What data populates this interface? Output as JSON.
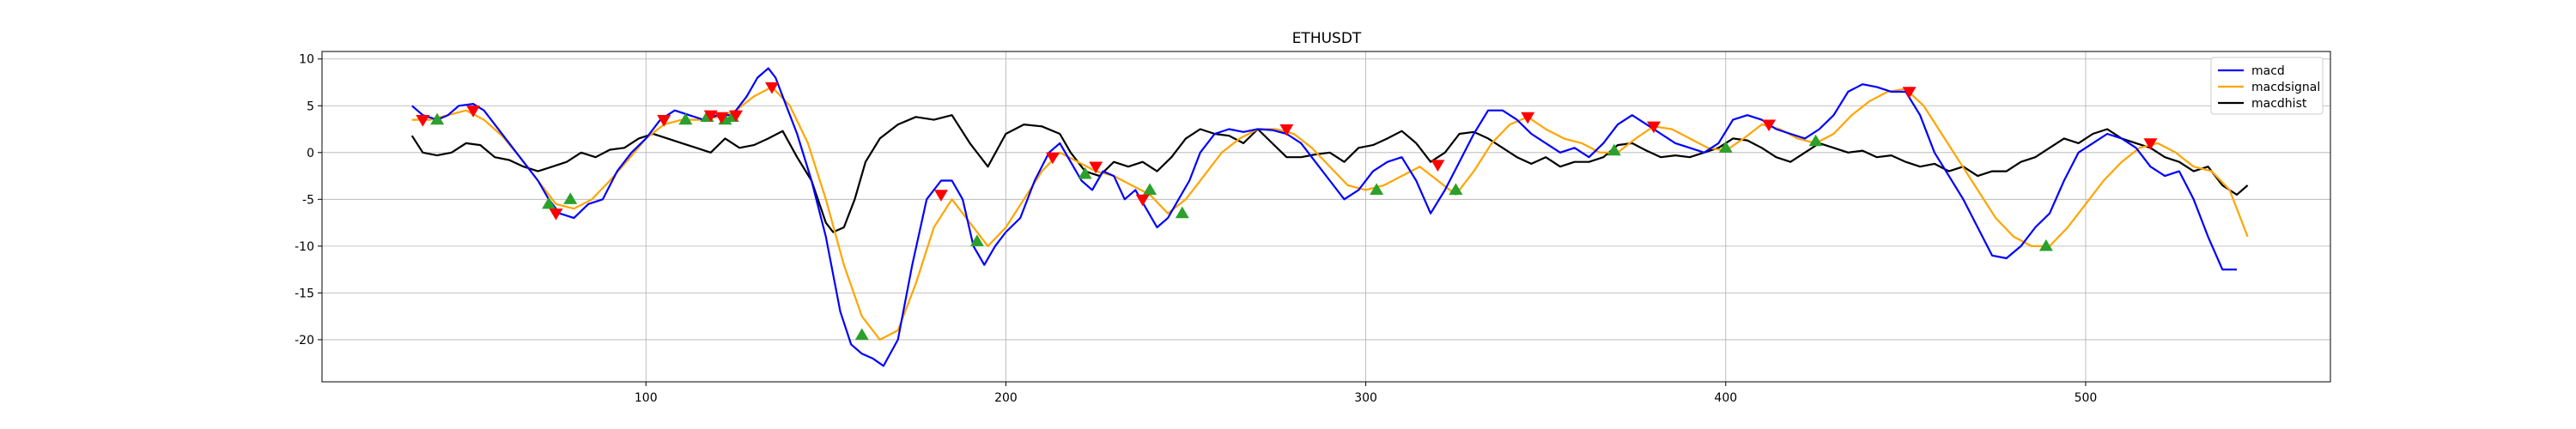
{
  "chart_data": {
    "type": "line",
    "title": "ETHUSDT",
    "xlabel": "",
    "ylabel": "",
    "xlim": [
      10,
      568
    ],
    "ylim": [
      -24.5,
      10.8
    ],
    "xticks": [
      100,
      200,
      300,
      400,
      500
    ],
    "yticks": [
      10,
      5,
      0,
      -5,
      -10,
      -15,
      -20
    ],
    "grid": true,
    "legend": "top-right",
    "colors": {
      "macd": "#0000ff",
      "macdsignal": "#ffa500",
      "macdhist": "#000000",
      "buy": "#2ca02c",
      "sell": "#ff0000"
    },
    "series": [
      {
        "name": "macd",
        "x": [
          35,
          38,
          42,
          45,
          48,
          52,
          55,
          58,
          62,
          66,
          70,
          73,
          76,
          80,
          84,
          88,
          92,
          96,
          100,
          104,
          108,
          112,
          116,
          120,
          124,
          128,
          131,
          134,
          136,
          139,
          142,
          146,
          150,
          154,
          157,
          160,
          163,
          166,
          170,
          174,
          178,
          182,
          185,
          188,
          191,
          194,
          197,
          200,
          204,
          208,
          212,
          215,
          218,
          221,
          224,
          227,
          230,
          233,
          236,
          239,
          242,
          245,
          248,
          251,
          254,
          258,
          262,
          266,
          270,
          274,
          278,
          282,
          286,
          290,
          294,
          298,
          302,
          306,
          310,
          314,
          318,
          322,
          326,
          330,
          334,
          338,
          342,
          346,
          350,
          354,
          358,
          362,
          366,
          370,
          374,
          378,
          382,
          386,
          390,
          394,
          398,
          402,
          406,
          410,
          414,
          418,
          422,
          426,
          430,
          434,
          438,
          442,
          446,
          450,
          454,
          458,
          462,
          466,
          470,
          474,
          478,
          482,
          486,
          490,
          494,
          498,
          502,
          506,
          510,
          514,
          518,
          522,
          526,
          530,
          534,
          538,
          542
        ],
        "y": [
          5.0,
          4.0,
          3.5,
          4.0,
          5.0,
          5.2,
          4.5,
          3.0,
          1.0,
          -1.0,
          -3.0,
          -5.0,
          -6.5,
          -7.0,
          -5.5,
          -5.0,
          -2.0,
          0.0,
          1.5,
          3.5,
          4.5,
          4.0,
          3.5,
          4.0,
          4.0,
          6.0,
          8.0,
          9.0,
          8.0,
          5.0,
          2.0,
          -3.0,
          -9.0,
          -17.0,
          -20.5,
          -21.5,
          -22.0,
          -22.8,
          -20.0,
          -12.0,
          -5.0,
          -3.0,
          -3.0,
          -5.0,
          -10.0,
          -12.0,
          -10.0,
          -8.5,
          -7.0,
          -3.0,
          0.0,
          1.0,
          -1.0,
          -3.0,
          -4.0,
          -2.0,
          -2.5,
          -5.0,
          -4.0,
          -6.0,
          -8.0,
          -7.0,
          -5.0,
          -3.0,
          0.0,
          2.0,
          2.5,
          2.2,
          2.5,
          2.4,
          2.0,
          1.0,
          -1.0,
          -3.0,
          -5.0,
          -4.0,
          -2.0,
          -1.0,
          -0.5,
          -3.0,
          -6.5,
          -4.0,
          -1.0,
          2.0,
          4.5,
          4.5,
          3.5,
          2.0,
          1.0,
          0.0,
          0.5,
          -0.5,
          1.0,
          3.0,
          4.0,
          3.0,
          2.0,
          1.0,
          0.5,
          0.0,
          1.0,
          3.5,
          4.0,
          3.5,
          2.5,
          2.0,
          1.5,
          2.5,
          4.0,
          6.5,
          7.3,
          7.0,
          6.5,
          6.5,
          4.0,
          0.0,
          -2.5,
          -5.0,
          -8.0,
          -11.0,
          -11.3,
          -10.0,
          -8.0,
          -6.5,
          -3.0,
          0.0,
          1.0,
          2.0,
          1.5,
          0.5,
          -1.5,
          -2.5,
          -2.0,
          -5.0,
          -9.0,
          -12.5,
          -12.5
        ]
      },
      {
        "name": "macdsignal",
        "x": [
          35,
          40,
          45,
          50,
          55,
          60,
          65,
          70,
          75,
          80,
          85,
          90,
          95,
          100,
          105,
          110,
          115,
          120,
          125,
          130,
          135,
          140,
          145,
          150,
          155,
          160,
          165,
          170,
          175,
          180,
          185,
          190,
          195,
          200,
          205,
          210,
          215,
          220,
          225,
          230,
          235,
          240,
          245,
          250,
          255,
          260,
          265,
          270,
          275,
          280,
          285,
          290,
          295,
          300,
          305,
          310,
          315,
          320,
          325,
          330,
          335,
          340,
          345,
          350,
          355,
          360,
          365,
          370,
          375,
          380,
          385,
          390,
          395,
          400,
          405,
          410,
          415,
          420,
          425,
          430,
          435,
          440,
          445,
          450,
          455,
          460,
          465,
          470,
          475,
          480,
          485,
          490,
          495,
          500,
          505,
          510,
          515,
          520,
          525,
          530,
          535,
          540,
          545
        ],
        "y": [
          3.5,
          3.5,
          4.0,
          4.5,
          3.5,
          1.8,
          -0.5,
          -3.0,
          -5.5,
          -6.0,
          -5.0,
          -3.0,
          -0.8,
          1.5,
          3.0,
          3.5,
          3.5,
          3.8,
          4.5,
          6.0,
          7.0,
          5.0,
          1.0,
          -5.0,
          -12.0,
          -17.5,
          -20.0,
          -19.0,
          -14.0,
          -8.0,
          -5.0,
          -7.5,
          -10.0,
          -8.0,
          -5.0,
          -2.0,
          0.0,
          -1.0,
          -2.0,
          -2.5,
          -3.5,
          -4.5,
          -6.5,
          -5.0,
          -2.5,
          0.0,
          1.5,
          2.5,
          2.5,
          2.0,
          0.5,
          -1.5,
          -3.5,
          -4.0,
          -3.5,
          -2.5,
          -1.5,
          -3.0,
          -4.5,
          -2.0,
          1.0,
          3.0,
          3.8,
          2.5,
          1.5,
          1.0,
          0.0,
          0.0,
          1.5,
          2.8,
          2.5,
          1.5,
          0.5,
          0.2,
          1.5,
          3.0,
          2.5,
          1.5,
          1.0,
          2.0,
          4.0,
          5.5,
          6.5,
          6.8,
          5.0,
          2.0,
          -1.0,
          -4.0,
          -7.0,
          -9.0,
          -10.0,
          -10.0,
          -8.0,
          -5.5,
          -3.0,
          -1.0,
          0.5,
          1.0,
          0.0,
          -1.5,
          -2.0,
          -4.0,
          -9.0
        ]
      },
      {
        "name": "macdhist",
        "x": [
          35,
          38,
          42,
          46,
          50,
          54,
          58,
          62,
          66,
          70,
          74,
          78,
          82,
          86,
          90,
          94,
          98,
          102,
          106,
          110,
          114,
          118,
          122,
          126,
          130,
          134,
          138,
          142,
          146,
          150,
          152,
          155,
          158,
          161,
          165,
          170,
          175,
          180,
          185,
          190,
          195,
          200,
          205,
          210,
          215,
          218,
          222,
          226,
          230,
          234,
          238,
          242,
          246,
          250,
          254,
          258,
          262,
          266,
          270,
          274,
          278,
          282,
          286,
          290,
          294,
          298,
          302,
          306,
          310,
          314,
          318,
          322,
          326,
          330,
          334,
          338,
          342,
          346,
          350,
          354,
          358,
          362,
          366,
          370,
          374,
          378,
          382,
          386,
          390,
          394,
          398,
          402,
          406,
          410,
          414,
          418,
          422,
          426,
          430,
          434,
          438,
          442,
          446,
          450,
          454,
          458,
          462,
          466,
          470,
          474,
          478,
          482,
          486,
          490,
          494,
          498,
          502,
          506,
          510,
          514,
          518,
          522,
          526,
          530,
          534,
          538,
          542,
          545
        ],
        "y": [
          1.8,
          0.0,
          -0.3,
          0.0,
          1.0,
          0.8,
          -0.5,
          -0.8,
          -1.5,
          -2.0,
          -1.5,
          -1.0,
          0.0,
          -0.5,
          0.3,
          0.5,
          1.5,
          2.0,
          1.5,
          1.0,
          0.5,
          0.0,
          1.5,
          0.5,
          0.8,
          1.5,
          2.3,
          -0.5,
          -3.0,
          -7.5,
          -8.5,
          -8.0,
          -5.0,
          -1.0,
          1.5,
          3.0,
          3.8,
          3.5,
          4.0,
          1.0,
          -1.5,
          2.0,
          3.0,
          2.8,
          2.0,
          0.0,
          -2.0,
          -2.5,
          -1.0,
          -1.5,
          -1.0,
          -2.0,
          -0.5,
          1.5,
          2.5,
          2.0,
          1.8,
          1.0,
          2.5,
          1.0,
          -0.5,
          -0.5,
          -0.2,
          0.0,
          -1.0,
          0.5,
          0.8,
          1.5,
          2.3,
          1.0,
          -1.0,
          0.0,
          2.0,
          2.2,
          1.5,
          0.5,
          -0.5,
          -1.2,
          -0.5,
          -1.5,
          -1.0,
          -1.0,
          -0.5,
          0.8,
          1.0,
          0.2,
          -0.5,
          -0.3,
          -0.5,
          0.0,
          0.5,
          1.5,
          1.3,
          0.5,
          -0.5,
          -1.0,
          0.0,
          1.0,
          0.5,
          0.0,
          0.2,
          -0.5,
          -0.3,
          -1.0,
          -1.5,
          -1.2,
          -2.0,
          -1.5,
          -2.5,
          -2.0,
          -2.0,
          -1.0,
          -0.5,
          0.5,
          1.5,
          1.0,
          2.0,
          2.5,
          1.5,
          1.0,
          0.5,
          -0.5,
          -1.0,
          -2.0,
          -1.5,
          -3.5,
          -4.5,
          -3.5
        ]
      }
    ],
    "buy_signals": {
      "x": [
        42,
        73,
        79,
        111,
        117,
        122,
        124,
        160,
        192,
        222,
        240,
        249,
        303,
        325,
        369,
        400,
        425,
        489
      ],
      "y": [
        3.5,
        -5.5,
        -5.0,
        3.5,
        3.8,
        3.5,
        3.8,
        -19.5,
        -9.5,
        -2.3,
        -4.0,
        -6.5,
        -4.0,
        -4.0,
        0.2,
        0.5,
        1.2,
        -10.0
      ]
    },
    "sell_signals": {
      "x": [
        38,
        52,
        75,
        105,
        118,
        121,
        125,
        135,
        182,
        213,
        225,
        238,
        278,
        320,
        345,
        380,
        412,
        451,
        518
      ],
      "y": [
        3.5,
        4.5,
        -6.5,
        3.5,
        4.0,
        3.8,
        4.0,
        7.0,
        -4.5,
        -0.5,
        -1.5,
        -5.0,
        2.5,
        -1.3,
        3.8,
        2.8,
        3.0,
        6.5,
        1.0
      ]
    }
  },
  "legend": {
    "items": [
      {
        "label": "macd",
        "color": "#0000ff"
      },
      {
        "label": "macdsignal",
        "color": "#ffa500"
      },
      {
        "label": "macdhist",
        "color": "#000000"
      }
    ]
  }
}
